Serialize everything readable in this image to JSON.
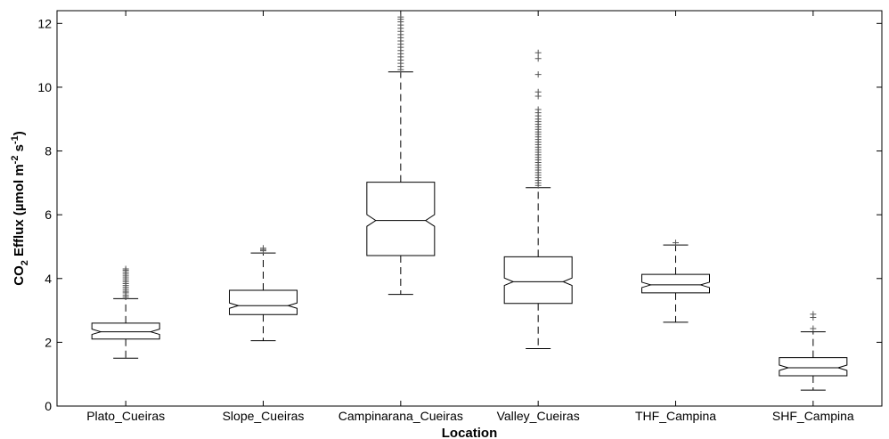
{
  "chart_data": {
    "type": "boxplot",
    "xlabel": "Location",
    "ylabel": {
      "pre": "CO",
      "sub": "2",
      "mid": " Efflux (µmol m",
      "sup1": "-2",
      "mid2": " s",
      "sup2": "-1",
      "post": ")"
    },
    "ylim": [
      0,
      12.4
    ],
    "yticks": [
      0,
      2,
      4,
      6,
      8,
      10,
      12
    ],
    "grid": false,
    "notched": true,
    "categories": [
      "Plato_Cueiras",
      "Slope_Cueiras",
      "Campinarana_Cueiras",
      "Valley_Cueiras",
      "THF_Campina",
      "SHF_Campina"
    ],
    "boxes": [
      {
        "lower_whisker": 1.5,
        "q1": 2.1,
        "median": 2.33,
        "q3": 2.6,
        "upper_whisker": 3.37,
        "outliers": [
          3.42,
          3.48,
          3.55,
          3.6,
          3.66,
          3.72,
          3.78,
          3.84,
          3.9,
          3.96,
          4.02,
          4.08,
          4.14,
          4.2,
          4.26,
          4.3
        ]
      },
      {
        "lower_whisker": 2.05,
        "q1": 2.87,
        "median": 3.15,
        "q3": 3.63,
        "upper_whisker": 4.8,
        "outliers": [
          4.87,
          4.91,
          4.95
        ]
      },
      {
        "lower_whisker": 3.5,
        "q1": 4.72,
        "median": 5.82,
        "q3": 7.02,
        "upper_whisker": 10.48,
        "outliers": [
          10.55,
          10.65,
          10.75,
          10.85,
          10.95,
          11.05,
          11.15,
          11.25,
          11.35,
          11.45,
          11.55,
          11.65,
          11.75,
          11.85,
          11.95,
          12.05,
          12.13,
          12.2
        ]
      },
      {
        "lower_whisker": 1.8,
        "q1": 3.22,
        "median": 3.9,
        "q3": 4.68,
        "upper_whisker": 6.85,
        "outliers": [
          6.92,
          7.0,
          7.08,
          7.16,
          7.24,
          7.32,
          7.4,
          7.48,
          7.56,
          7.64,
          7.72,
          7.8,
          7.88,
          7.96,
          8.04,
          8.12,
          8.2,
          8.28,
          8.36,
          8.44,
          8.52,
          8.6,
          8.68,
          8.76,
          8.84,
          8.92,
          9.0,
          9.1,
          9.2,
          9.3,
          9.72,
          9.85,
          10.4,
          10.9,
          11.08
        ]
      },
      {
        "lower_whisker": 2.63,
        "q1": 3.55,
        "median": 3.8,
        "q3": 4.13,
        "upper_whisker": 5.05,
        "outliers": [
          5.12
        ]
      },
      {
        "lower_whisker": 0.5,
        "q1": 0.95,
        "median": 1.2,
        "q3": 1.52,
        "upper_whisker": 2.33,
        "outliers": [
          2.43,
          2.78,
          2.88
        ]
      }
    ]
  }
}
